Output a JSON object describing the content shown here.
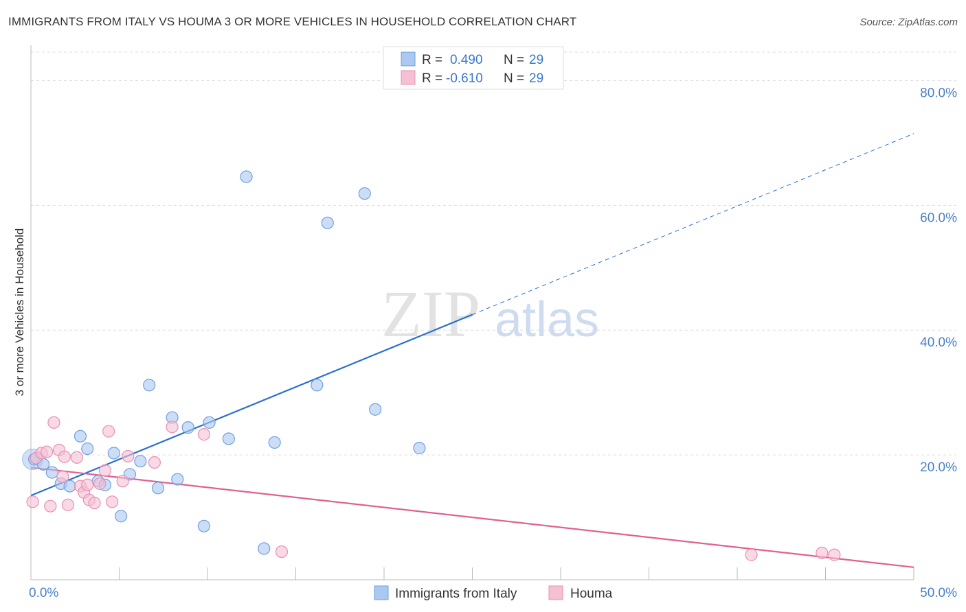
{
  "title": "IMMIGRANTS FROM ITALY VS HOUMA 3 OR MORE VEHICLES IN HOUSEHOLD CORRELATION CHART",
  "source": "Source: ZipAtlas.com",
  "watermark": {
    "zip": "ZIP",
    "atlas": "atlas"
  },
  "chart_data": {
    "type": "scatter",
    "title": "IMMIGRANTS FROM ITALY VS HOUMA 3 OR MORE VEHICLES IN HOUSEHOLD CORRELATION CHART",
    "xlabel": "",
    "ylabel": "3 or more Vehicles in Household",
    "xlim": [
      0,
      50
    ],
    "ylim": [
      0,
      85
    ],
    "x_tick_labels": [
      "0.0%",
      "50.0%"
    ],
    "y_ticks": [
      20,
      40,
      60,
      80
    ],
    "y_tick_labels": [
      "20.0%",
      "40.0%",
      "60.0%",
      "80.0%"
    ],
    "grid": true,
    "legend": [
      {
        "r_label": "R =",
        "r_value": "0.490",
        "n_label": "N =",
        "n_value": "29"
      },
      {
        "r_label": "R =",
        "r_value": "-0.610",
        "n_label": "N =",
        "n_value": "29"
      }
    ],
    "series": [
      {
        "name": "Immigrants from Italy",
        "color": "#6f9fe0",
        "fill": "#aac8f0",
        "line_color": "#2a6fcf",
        "points": [
          [
            0.2,
            19.3
          ],
          [
            0.7,
            18.5
          ],
          [
            1.2,
            17.2
          ],
          [
            1.7,
            15.4
          ],
          [
            2.2,
            15.0
          ],
          [
            2.8,
            23.0
          ],
          [
            3.2,
            21.0
          ],
          [
            3.8,
            15.8
          ],
          [
            4.2,
            15.2
          ],
          [
            4.7,
            20.3
          ],
          [
            5.1,
            10.2
          ],
          [
            5.6,
            16.9
          ],
          [
            6.2,
            19.0
          ],
          [
            6.7,
            31.2
          ],
          [
            7.2,
            14.7
          ],
          [
            8.0,
            26.0
          ],
          [
            8.3,
            16.1
          ],
          [
            8.9,
            24.4
          ],
          [
            9.8,
            8.6
          ],
          [
            10.1,
            25.2
          ],
          [
            11.2,
            22.6
          ],
          [
            12.2,
            64.6
          ],
          [
            13.2,
            5.0
          ],
          [
            13.8,
            22.0
          ],
          [
            16.2,
            31.2
          ],
          [
            16.8,
            57.2
          ],
          [
            18.9,
            61.9
          ],
          [
            19.5,
            27.3
          ],
          [
            22.0,
            21.1
          ]
        ],
        "trend": {
          "x0": 0,
          "y0": 13.5,
          "x1": 25,
          "y1": 42.5,
          "dash_x1": 50,
          "dash_y1": 71.5
        }
      },
      {
        "name": "Houma",
        "color": "#e890b0",
        "fill": "#f5c0d4",
        "line_color": "#e0608e",
        "points": [
          [
            0.1,
            12.5
          ],
          [
            0.3,
            19.5
          ],
          [
            0.6,
            20.3
          ],
          [
            0.9,
            20.5
          ],
          [
            1.1,
            11.8
          ],
          [
            1.3,
            25.2
          ],
          [
            1.6,
            20.8
          ],
          [
            1.8,
            16.5
          ],
          [
            1.9,
            19.7
          ],
          [
            2.1,
            12.0
          ],
          [
            2.6,
            19.6
          ],
          [
            2.8,
            15.0
          ],
          [
            3.0,
            14.0
          ],
          [
            3.2,
            15.2
          ],
          [
            3.3,
            12.8
          ],
          [
            3.6,
            12.3
          ],
          [
            3.9,
            15.4
          ],
          [
            4.2,
            17.5
          ],
          [
            4.4,
            23.8
          ],
          [
            4.6,
            12.5
          ],
          [
            5.2,
            15.8
          ],
          [
            5.5,
            19.8
          ],
          [
            7.0,
            18.8
          ],
          [
            8.0,
            24.5
          ],
          [
            9.8,
            23.3
          ],
          [
            14.2,
            4.5
          ],
          [
            40.8,
            4.0
          ],
          [
            44.8,
            4.3
          ],
          [
            45.5,
            4.0
          ]
        ],
        "trend": {
          "x0": 0,
          "y0": 18.0,
          "x1": 50,
          "y1": 2.0
        }
      }
    ]
  }
}
